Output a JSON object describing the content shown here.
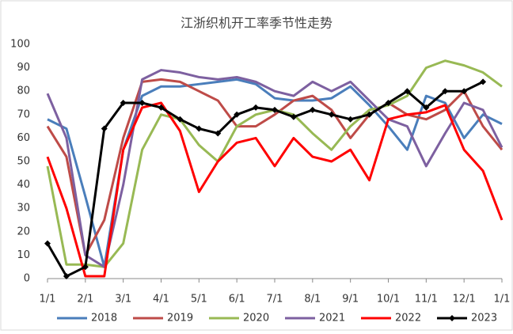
{
  "chart_data": {
    "type": "line",
    "title": "江浙织机开工率季节性走势",
    "x": [
      0,
      0.5,
      1,
      1.5,
      2,
      2.5,
      3,
      3.5,
      4,
      4.5,
      5,
      5.5,
      6,
      6.5,
      7,
      7.5,
      8,
      8.5,
      9,
      9.5,
      10,
      10.5,
      11,
      11.5,
      12
    ],
    "xlim": [
      0,
      12
    ],
    "xticks": [
      {
        "value": 0,
        "label": "1/1"
      },
      {
        "value": 1,
        "label": "2/1"
      },
      {
        "value": 2,
        "label": "3/1"
      },
      {
        "value": 3,
        "label": "4/1"
      },
      {
        "value": 4,
        "label": "5/1"
      },
      {
        "value": 5,
        "label": "6/1"
      },
      {
        "value": 6,
        "label": "7/1"
      },
      {
        "value": 7,
        "label": "8/1"
      },
      {
        "value": 8,
        "label": "9/1"
      },
      {
        "value": 9,
        "label": "10/1"
      },
      {
        "value": 10,
        "label": "11/1"
      },
      {
        "value": 11,
        "label": "12/1"
      },
      {
        "value": 12,
        "label": "1/1"
      }
    ],
    "ylim": [
      0,
      100
    ],
    "yticks": [
      0,
      10,
      20,
      30,
      40,
      50,
      60,
      70,
      80,
      90,
      100
    ],
    "series": [
      {
        "name": "2018",
        "color": "#4a7ebb",
        "values": [
          68,
          64,
          35,
          5,
          55,
          78,
          82,
          82,
          83,
          84,
          85,
          83,
          77,
          76,
          76,
          77,
          82,
          74,
          65,
          55,
          78,
          75,
          60,
          70,
          66
        ]
      },
      {
        "name": "2019",
        "color": "#be4b48",
        "values": [
          65,
          52,
          10,
          25,
          60,
          84,
          85,
          84,
          80,
          76,
          65,
          65,
          70,
          76,
          78,
          72,
          60,
          70,
          75,
          70,
          68,
          72,
          80,
          65,
          55
        ]
      },
      {
        "name": "2020",
        "color": "#98b954",
        "values": [
          48,
          6,
          6,
          5,
          15,
          55,
          70,
          68,
          57,
          50,
          65,
          70,
          72,
          70,
          62,
          55,
          65,
          72,
          74,
          78,
          90,
          93,
          91,
          88,
          82
        ]
      },
      {
        "name": "2021",
        "color": "#7d60a0",
        "values": [
          79,
          60,
          10,
          5,
          40,
          85,
          89,
          88,
          86,
          85,
          86,
          84,
          80,
          78,
          84,
          80,
          84,
          76,
          68,
          65,
          48,
          62,
          75,
          72,
          56
        ]
      },
      {
        "name": "2022",
        "color": "#ff0000",
        "values": [
          52,
          30,
          1,
          1,
          55,
          73,
          75,
          63,
          37,
          50,
          58,
          60,
          48,
          60,
          52,
          50,
          55,
          42,
          68,
          70,
          71,
          74,
          55,
          46,
          25
        ]
      },
      {
        "name": "2023",
        "color": "#000000",
        "values": [
          15,
          1,
          5,
          64,
          75,
          75,
          73,
          68,
          64,
          62,
          70,
          73,
          72,
          69,
          72,
          70,
          68,
          70,
          75,
          80,
          73,
          80,
          80,
          84,
          null
        ]
      }
    ]
  }
}
